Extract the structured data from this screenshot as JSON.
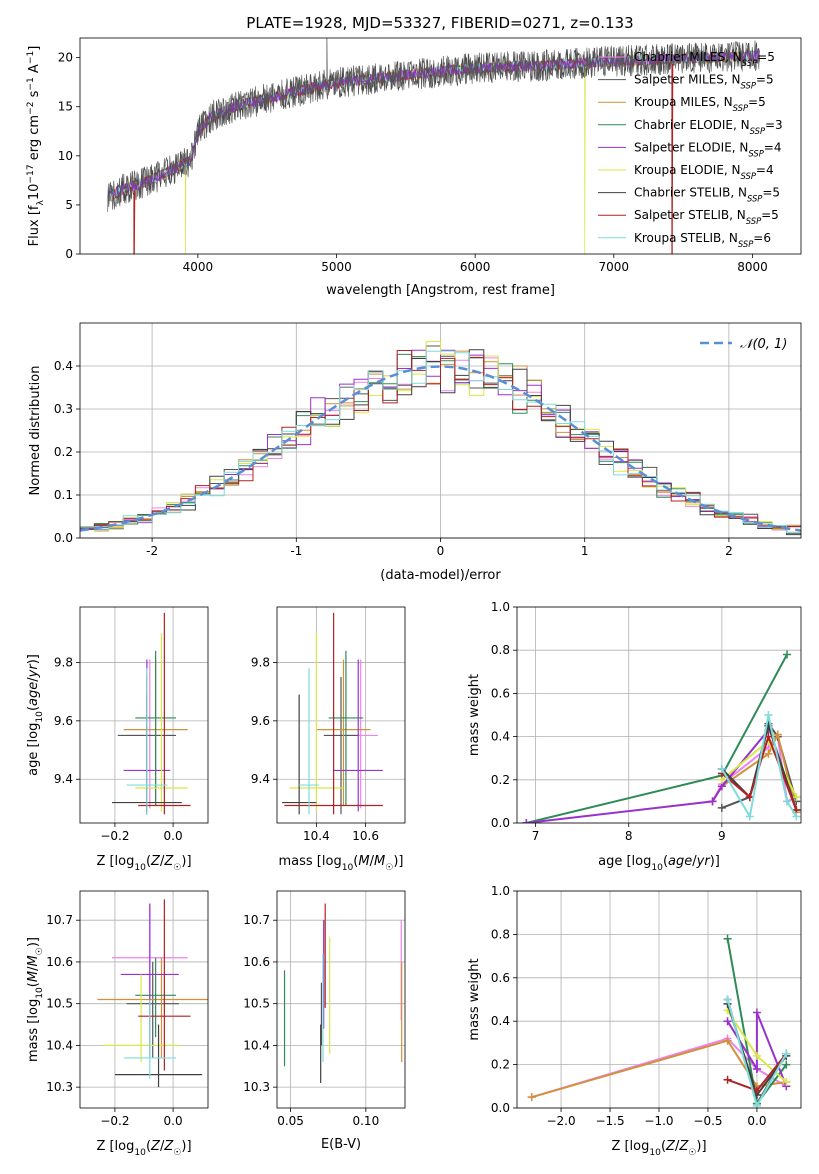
{
  "title": "PLATE=1928, MJD=53327, FIBERID=0271, z=0.133",
  "colors": {
    "chabrier_miles": "#ee82ee",
    "salpeter_miles": "#555555",
    "kroupa_miles": "#d2913a",
    "chabrier_elodie": "#2e8b57",
    "salpeter_elodie": "#9932cc",
    "kroupa_elodie": "#d8e84a",
    "chabrier_stelib": "#404040",
    "salpeter_stelib": "#b22222",
    "kroupa_stelib": "#7fdcdc",
    "normal": "#5a8fd8"
  },
  "chart_data": [
    {
      "id": "spectrum",
      "type": "line",
      "title": "PLATE=1928, MJD=53327, FIBERID=0271, z=0.133",
      "xlabel": "wavelength [Angstrom, rest frame]",
      "ylabel": "Flux [f_λ10^-17 erg cm^-2 s^-1 A^-1]",
      "xlim": [
        3150,
        8350
      ],
      "ylim": [
        0,
        22
      ],
      "xticks": [
        4000,
        5000,
        6000,
        7000,
        8000
      ],
      "yticks": [
        0,
        5,
        10,
        15,
        20
      ],
      "grid": false,
      "legend_position": "right",
      "legend": [
        "Chabrier MILES, N_SSP=5",
        "Salpeter MILES, N_SSP=5",
        "Kroupa MILES, N_SSP=5",
        "Chabrier ELODIE, N_SSP=3",
        "Salpeter ELODIE, N_SSP=4",
        "Kroupa ELODIE, N_SSP=4",
        "Chabrier STELIB, N_SSP=5",
        "Salpeter STELIB, N_SSP=5",
        "Kroupa STELIB, N_SSP=6"
      ],
      "continuum": {
        "x": [
          3350,
          3500,
          3650,
          3800,
          3950,
          4000,
          4100,
          4300,
          4500,
          4700,
          4900,
          5100,
          5300,
          5500,
          5700,
          5900,
          6100,
          6300,
          6500,
          6700,
          6900,
          7100,
          7300,
          7500,
          7700,
          7900,
          8050
        ],
        "y": [
          5.8,
          6.8,
          7.5,
          8.5,
          9.5,
          12.5,
          14.0,
          15.2,
          15.8,
          16.5,
          17.2,
          17.6,
          17.9,
          18.2,
          18.5,
          18.8,
          19.0,
          19.1,
          19.2,
          19.4,
          19.6,
          19.7,
          19.8,
          19.9,
          20.0,
          20.1,
          20.2
        ]
      },
      "observed_x_range": [
        3350,
        8050
      ],
      "drops_to_zero_at": [
        {
          "series": "Salpeter STELIB",
          "x": 3540
        },
        {
          "series": "Kroupa ELODIE",
          "x": 3910
        },
        {
          "series": "Kroupa ELODIE",
          "x": 6790
        },
        {
          "series": "Salpeter STELIB",
          "x": 7420
        }
      ],
      "line_feature_peak": {
        "x": 4930,
        "y": 24.0
      }
    },
    {
      "id": "residuals",
      "type": "line",
      "xlabel": "(data-model)/error",
      "ylabel": "Normed distribution",
      "xlim": [
        -2.5,
        2.5
      ],
      "ylim": [
        0,
        0.5
      ],
      "xticks": [
        -2,
        -1,
        0,
        1,
        2
      ],
      "yticks": [
        0.0,
        0.1,
        0.2,
        0.3,
        0.4
      ],
      "grid": true,
      "legend_position": "top-right",
      "legend": [
        "𝒩(0, 1)"
      ],
      "reference_curve": {
        "name": "𝒩(0, 1)",
        "mean": 0,
        "sigma": 1,
        "style": "dashed"
      },
      "bin_width": 0.1,
      "histogram_series": 9
    },
    {
      "id": "age_vs_metallicity",
      "type": "scatter",
      "xlabel": "Z [log10(Z/Z☉)]",
      "ylabel": "age  [log10(age/yr)]",
      "xlim": [
        -0.32,
        0.12
      ],
      "ylim": [
        9.25,
        9.99
      ],
      "xticks": [
        -0.2,
        0.0
      ],
      "xtick_labels": [
        "−0.2",
        "0.0"
      ],
      "yticks": [
        9.4,
        9.6,
        9.8
      ],
      "grid": true,
      "points": [
        {
          "series": "chabrier_miles",
          "x": -0.08,
          "y": 9.55,
          "xerr": 0.08,
          "yerr": [
            0.25,
            0.26
          ]
        },
        {
          "series": "salpeter_miles",
          "x": -0.09,
          "y": 9.55,
          "xerr": 0.1,
          "yerr": [
            0.27,
            0.2
          ]
        },
        {
          "series": "kroupa_miles",
          "x": -0.06,
          "y": 9.57,
          "xerr": 0.11,
          "yerr": [
            0.26,
            0.24
          ]
        },
        {
          "series": "chabrier_elodie",
          "x": -0.06,
          "y": 9.61,
          "xerr": 0.07,
          "yerr": [
            0.3,
            0.23
          ]
        },
        {
          "series": "salpeter_elodie",
          "x": -0.09,
          "y": 9.43,
          "xerr": 0.08,
          "yerr": [
            0.14,
            0.38
          ]
        },
        {
          "series": "kroupa_elodie",
          "x": -0.04,
          "y": 9.37,
          "xerr": 0.09,
          "yerr": [
            0.08,
            0.53
          ]
        },
        {
          "series": "chabrier_stelib",
          "x": -0.09,
          "y": 9.32,
          "xerr": 0.12,
          "yerr": [
            0.04,
            0.37
          ]
        },
        {
          "series": "salpeter_stelib",
          "x": -0.03,
          "y": 9.31,
          "xerr": 0.09,
          "yerr": [
            0.03,
            0.66
          ]
        },
        {
          "series": "kroupa_stelib",
          "x": -0.09,
          "y": 9.38,
          "xerr": 0.07,
          "yerr": [
            0.1,
            0.4
          ]
        }
      ]
    },
    {
      "id": "age_vs_mass",
      "type": "scatter",
      "xlabel": "mass [log10(M/M☉)]",
      "ylabel": "",
      "xlim": [
        10.24,
        10.76
      ],
      "ylim": [
        9.25,
        9.99
      ],
      "xticks": [
        10.4,
        10.6
      ],
      "yticks": [
        9.4,
        9.6,
        9.8
      ],
      "grid": true,
      "points": [
        {
          "series": "chabrier_miles",
          "x": 10.58,
          "y": 9.55,
          "xerr": 0.07,
          "yerr": [
            0.25,
            0.26
          ]
        },
        {
          "series": "salpeter_miles",
          "x": 10.5,
          "y": 9.55,
          "xerr": 0.07,
          "yerr": [
            0.27,
            0.2
          ]
        },
        {
          "series": "kroupa_miles",
          "x": 10.51,
          "y": 9.57,
          "xerr": 0.11,
          "yerr": [
            0.26,
            0.24
          ]
        },
        {
          "series": "chabrier_elodie",
          "x": 10.52,
          "y": 9.61,
          "xerr": 0.07,
          "yerr": [
            0.3,
            0.23
          ]
        },
        {
          "series": "salpeter_elodie",
          "x": 10.57,
          "y": 9.43,
          "xerr": 0.1,
          "yerr": [
            0.14,
            0.38
          ]
        },
        {
          "series": "kroupa_elodie",
          "x": 10.4,
          "y": 9.37,
          "xerr": 0.11,
          "yerr": [
            0.08,
            0.53
          ]
        },
        {
          "series": "chabrier_stelib",
          "x": 10.33,
          "y": 9.32,
          "xerr": 0.07,
          "yerr": [
            0.04,
            0.37
          ]
        },
        {
          "series": "salpeter_stelib",
          "x": 10.47,
          "y": 9.31,
          "xerr": 0.2,
          "yerr": [
            0.03,
            0.66
          ]
        },
        {
          "series": "kroupa_stelib",
          "x": 10.37,
          "y": 9.38,
          "xerr": 0.04,
          "yerr": [
            0.1,
            0.4
          ]
        }
      ]
    },
    {
      "id": "mass_weight_vs_age",
      "type": "line",
      "xlabel": "age  [log10(age/yr)]",
      "ylabel": "mass weight",
      "xlim": [
        6.8,
        9.85
      ],
      "ylim": [
        0,
        1
      ],
      "xticks": [
        7,
        8,
        9
      ],
      "yticks": [
        0.0,
        0.2,
        0.4,
        0.6,
        0.8,
        1.0
      ],
      "grid": true,
      "series": [
        {
          "name": "chabrier_miles",
          "x": [
            8.9,
            9.0,
            9.5,
            9.6,
            9.7,
            9.8
          ],
          "y": [
            0.1,
            0.18,
            0.35,
            0.4,
            0.1,
            0.12
          ]
        },
        {
          "name": "salpeter_miles",
          "x": [
            9.0,
            9.3,
            9.5,
            9.6,
            9.8
          ],
          "y": [
            0.07,
            0.12,
            0.46,
            0.4,
            0.1
          ]
        },
        {
          "name": "kroupa_miles",
          "x": [
            8.9,
            9.0,
            9.5,
            9.6,
            9.8
          ],
          "y": [
            0.1,
            0.17,
            0.32,
            0.41,
            0.05
          ]
        },
        {
          "name": "chabrier_elodie",
          "x": [
            6.9,
            9.0,
            9.7
          ],
          "y": [
            0.0,
            0.22,
            0.78
          ]
        },
        {
          "name": "salpeter_elodie",
          "x": [
            6.9,
            8.9,
            9.0,
            9.5
          ],
          "y": [
            0.0,
            0.1,
            0.17,
            0.43
          ]
        },
        {
          "name": "kroupa_elodie",
          "x": [
            9.0,
            9.5,
            9.8
          ],
          "y": [
            0.2,
            0.38,
            0.12
          ]
        },
        {
          "name": "chabrier_stelib",
          "x": [
            9.0,
            9.3,
            9.5,
            9.8
          ],
          "y": [
            0.25,
            0.12,
            0.45,
            0.06
          ]
        },
        {
          "name": "salpeter_stelib",
          "x": [
            9.0,
            9.3,
            9.5,
            9.8
          ],
          "y": [
            0.23,
            0.12,
            0.4,
            0.06
          ]
        },
        {
          "name": "kroupa_stelib",
          "x": [
            9.0,
            9.3,
            9.5,
            9.7,
            9.8
          ],
          "y": [
            0.25,
            0.03,
            0.5,
            0.1,
            0.03
          ]
        }
      ]
    },
    {
      "id": "mass_vs_metallicity",
      "type": "scatter",
      "xlabel": "Z [log10(Z/Z☉)]",
      "ylabel": "mass [log10(M/M☉)]",
      "xlim": [
        -0.32,
        0.12
      ],
      "ylim": [
        10.25,
        10.77
      ],
      "xticks": [
        -0.2,
        0.0
      ],
      "xtick_labels": [
        "−0.2",
        "0.0"
      ],
      "yticks": [
        10.3,
        10.4,
        10.5,
        10.6,
        10.7
      ],
      "grid": true,
      "points": [
        {
          "series": "chabrier_miles",
          "x": -0.08,
          "y": 10.61,
          "xerr": 0.13,
          "yerr": [
            0.22,
            0.13
          ]
        },
        {
          "series": "salpeter_miles",
          "x": -0.07,
          "y": 10.5,
          "xerr": 0.09,
          "yerr": [
            0.13,
            0.1
          ]
        },
        {
          "series": "kroupa_miles",
          "x": -0.04,
          "y": 10.51,
          "xerr": 0.22,
          "yerr": [
            0.14,
            0.1
          ]
        },
        {
          "series": "chabrier_elodie",
          "x": -0.06,
          "y": 10.52,
          "xerr": 0.07,
          "yerr": [
            0.1,
            0.09
          ]
        },
        {
          "series": "salpeter_elodie",
          "x": -0.08,
          "y": 10.57,
          "xerr": 0.1,
          "yerr": [
            0.2,
            0.17
          ]
        },
        {
          "series": "kroupa_elodie",
          "x": -0.11,
          "y": 10.4,
          "xerr": 0.13,
          "yerr": [
            0.04,
            0.17
          ]
        },
        {
          "series": "chabrier_stelib",
          "x": -0.05,
          "y": 10.33,
          "xerr": 0.15,
          "yerr": [
            0.03,
            0.12
          ]
        },
        {
          "series": "salpeter_stelib",
          "x": -0.03,
          "y": 10.47,
          "xerr": 0.09,
          "yerr": [
            0.13,
            0.28
          ]
        },
        {
          "series": "kroupa_stelib",
          "x": -0.08,
          "y": 10.37,
          "xerr": 0.09,
          "yerr": [
            0.05,
            0.14
          ]
        }
      ]
    },
    {
      "id": "mass_vs_ebv",
      "type": "scatter",
      "xlabel": "E(B-V)",
      "ylabel": "",
      "xlim": [
        0.041,
        0.126
      ],
      "ylim": [
        10.25,
        10.77
      ],
      "xticks": [
        0.05,
        0.1
      ],
      "xtick_labels": [
        "0.05",
        "0.10"
      ],
      "yticks": [
        10.3,
        10.4,
        10.5,
        10.6,
        10.7
      ],
      "grid": true,
      "points": [
        {
          "series": "chabrier_miles",
          "x": 0.1235,
          "y": 10.58,
          "xerr": 0,
          "yerr": [
            0.12,
            0.12
          ]
        },
        {
          "series": "salpeter_miles",
          "x": 0.0705,
          "y": 10.5,
          "xerr": 0,
          "yerr": [
            0.1,
            0.05
          ]
        },
        {
          "series": "kroupa_miles",
          "x": 0.1238,
          "y": 10.5,
          "xerr": 0,
          "yerr": [
            0.14,
            0.1
          ]
        },
        {
          "series": "chabrier_elodie",
          "x": 0.046,
          "y": 10.47,
          "xerr": 0,
          "yerr": [
            0.12,
            0.11
          ]
        },
        {
          "series": "salpeter_elodie",
          "x": 0.072,
          "y": 10.6,
          "xerr": 0,
          "yerr": [
            0.16,
            0.1
          ]
        },
        {
          "series": "kroupa_elodie",
          "x": 0.076,
          "y": 10.5,
          "xerr": 0,
          "yerr": [
            0.12,
            0.16
          ]
        },
        {
          "series": "chabrier_stelib",
          "x": 0.07,
          "y": 10.38,
          "xerr": 0,
          "yerr": [
            0.07,
            0.07
          ]
        },
        {
          "series": "salpeter_stelib",
          "x": 0.073,
          "y": 10.61,
          "xerr": 0,
          "yerr": [
            0.12,
            0.13
          ]
        },
        {
          "series": "kroupa_stelib",
          "x": 0.0715,
          "y": 10.5,
          "xerr": 0,
          "yerr": [
            0.14,
            0.12
          ]
        }
      ]
    },
    {
      "id": "mass_weight_vs_metallicity",
      "type": "line",
      "xlabel": "Z [log10(Z/Z☉)]",
      "ylabel": "mass weight",
      "xlim": [
        -2.45,
        0.45
      ],
      "ylim": [
        0,
        1
      ],
      "xticks": [
        -2.0,
        -1.5,
        -1.0,
        -0.5,
        0.0
      ],
      "xtick_labels": [
        "−2.0",
        "−1.5",
        "−1.0",
        "−0.5",
        "0.0"
      ],
      "yticks": [
        0.0,
        0.2,
        0.4,
        0.6,
        0.8,
        1.0
      ],
      "grid": true,
      "series": [
        {
          "name": "chabrier_miles",
          "x": [
            -2.3,
            -0.3,
            0.0,
            0.3
          ],
          "y": [
            0.05,
            0.32,
            0.18,
            0.1
          ]
        },
        {
          "name": "salpeter_miles",
          "x": [
            -0.3,
            0.0,
            0.3
          ],
          "y": [
            0.5,
            0.02,
            0.25
          ]
        },
        {
          "name": "kroupa_miles",
          "x": [
            -2.3,
            -0.3,
            0.0,
            0.3
          ],
          "y": [
            0.05,
            0.31,
            0.1,
            0.12
          ]
        },
        {
          "name": "chabrier_elodie",
          "x": [
            -0.3,
            0.0,
            0.3
          ],
          "y": [
            0.78,
            0.02,
            0.2
          ]
        },
        {
          "name": "salpeter_elodie",
          "x": [
            -0.3,
            0.0,
            0.0,
            0.3
          ],
          "y": [
            0.4,
            0.18,
            0.44,
            0.1
          ]
        },
        {
          "name": "kroupa_elodie",
          "x": [
            -0.3,
            0.0,
            0.3
          ],
          "y": [
            0.45,
            0.24,
            0.12
          ]
        },
        {
          "name": "chabrier_stelib",
          "x": [
            -0.3,
            0.0,
            0.3
          ],
          "y": [
            0.48,
            0.06,
            0.24
          ]
        },
        {
          "name": "salpeter_stelib",
          "x": [
            -0.3,
            0.0,
            0.3
          ],
          "y": [
            0.13,
            0.08,
            0.25
          ]
        },
        {
          "name": "kroupa_stelib",
          "x": [
            -0.3,
            0.0,
            0.3
          ],
          "y": [
            0.5,
            0.01,
            0.25
          ]
        }
      ]
    }
  ]
}
